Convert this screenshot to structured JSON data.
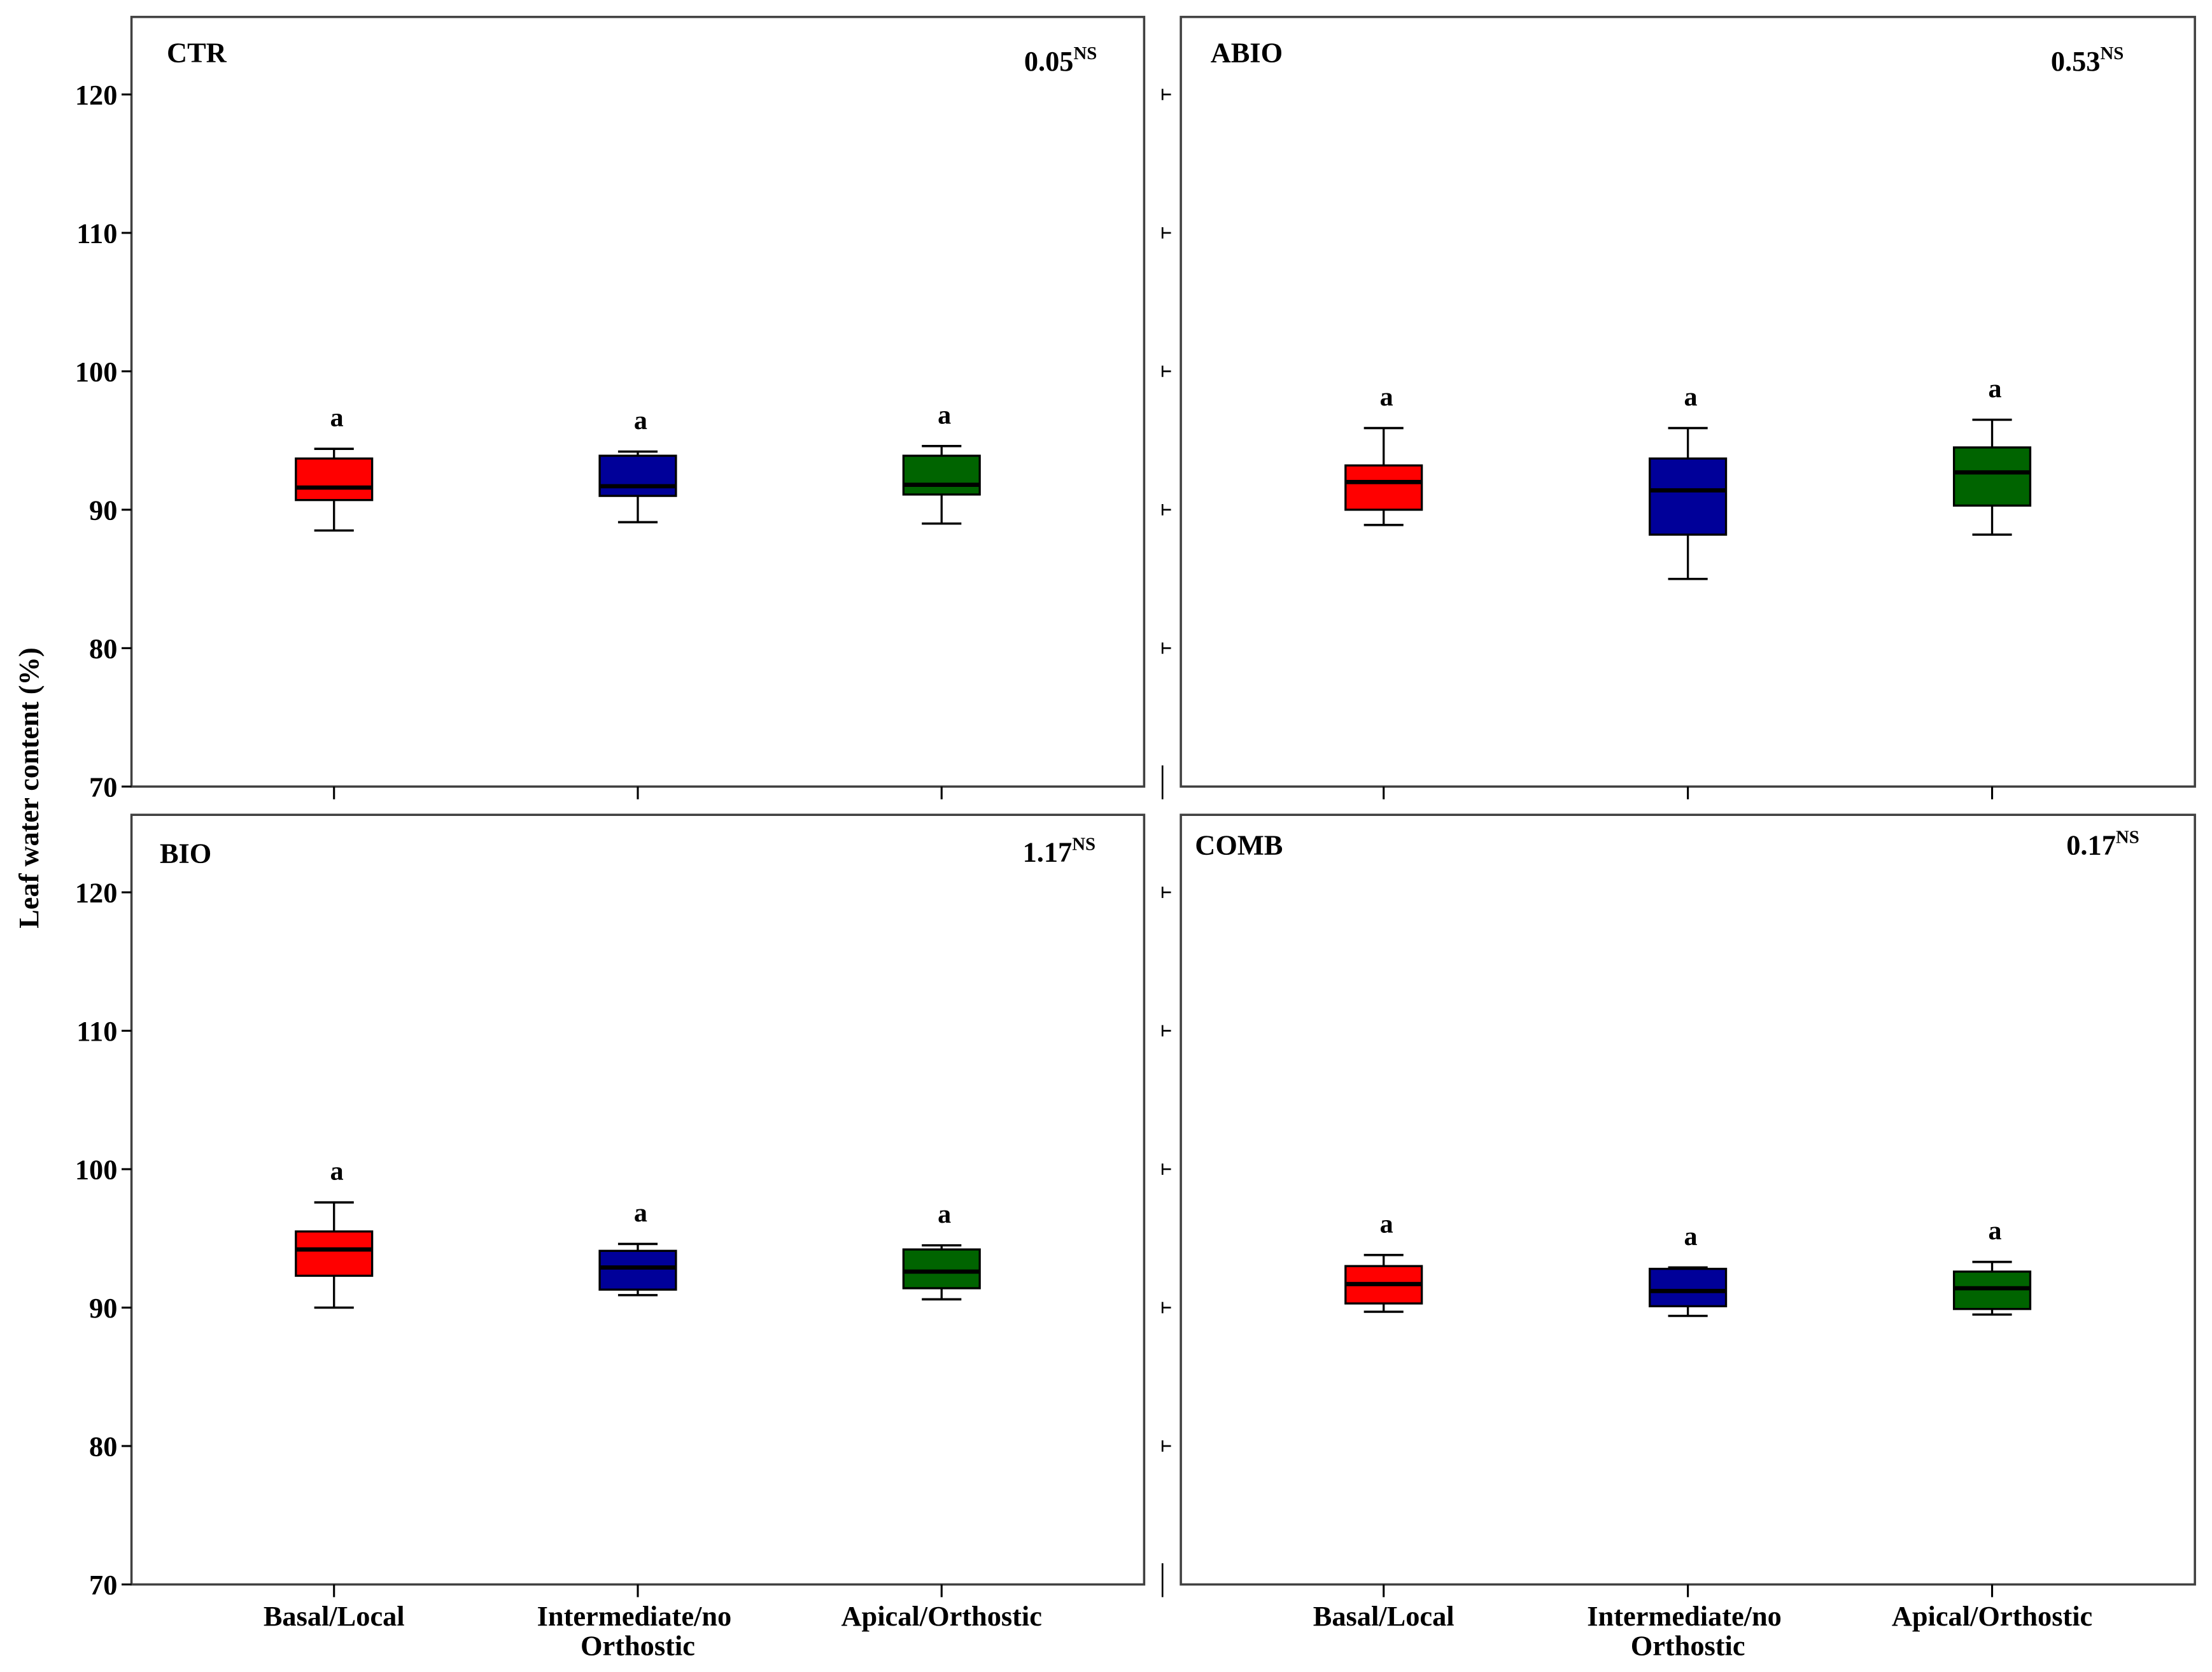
{
  "chart_data": {
    "type": "box",
    "ylabel": "Leaf water content (%)",
    "ylim": [
      70,
      125.6
    ],
    "yticks": [
      70,
      80,
      90,
      100,
      110,
      120
    ],
    "categories": [
      "Basal/Local",
      "Intermediate/no Orthostic",
      "Apical/Orthostic"
    ],
    "colors": [
      "#ff0000",
      "#000099",
      "#006400"
    ],
    "panels": [
      {
        "title": "CTR",
        "stat": "0.05",
        "stat_sup": "NS",
        "boxes": [
          {
            "low": 88.5,
            "q1": 90.7,
            "median": 91.6,
            "q3": 93.7,
            "high": 94.4,
            "letter": "a"
          },
          {
            "low": 89.1,
            "q1": 91.0,
            "median": 91.7,
            "q3": 93.9,
            "high": 94.2,
            "letter": "a"
          },
          {
            "low": 89.0,
            "q1": 91.1,
            "median": 91.8,
            "q3": 93.9,
            "high": 94.6,
            "letter": "a"
          }
        ]
      },
      {
        "title": "ABIO",
        "stat": "0.53",
        "stat_sup": "NS",
        "boxes": [
          {
            "low": 88.9,
            "q1": 90.0,
            "median": 92.0,
            "q3": 93.2,
            "high": 95.9,
            "letter": "a"
          },
          {
            "low": 85.0,
            "q1": 88.2,
            "median": 91.4,
            "q3": 93.7,
            "high": 95.9,
            "letter": "a"
          },
          {
            "low": 88.2,
            "q1": 90.3,
            "median": 92.7,
            "q3": 94.5,
            "high": 96.5,
            "letter": "a"
          }
        ]
      },
      {
        "title": "BIO",
        "stat": "1.17",
        "stat_sup": "NS",
        "boxes": [
          {
            "low": 90.0,
            "q1": 92.3,
            "median": 94.2,
            "q3": 95.5,
            "high": 97.6,
            "letter": "a"
          },
          {
            "low": 90.9,
            "q1": 91.3,
            "median": 92.9,
            "q3": 94.1,
            "high": 94.6,
            "letter": "a"
          },
          {
            "low": 90.6,
            "q1": 91.4,
            "median": 92.6,
            "q3": 94.2,
            "high": 94.5,
            "letter": "a"
          }
        ]
      },
      {
        "title": "COMB",
        "stat": "0.17",
        "stat_sup": "NS",
        "boxes": [
          {
            "low": 89.7,
            "q1": 90.3,
            "median": 91.7,
            "q3": 93.0,
            "high": 93.8,
            "letter": "a"
          },
          {
            "low": 89.4,
            "q1": 90.1,
            "median": 91.2,
            "q3": 92.8,
            "high": 92.9,
            "letter": "a"
          },
          {
            "low": 89.5,
            "q1": 89.9,
            "median": 91.4,
            "q3": 92.6,
            "high": 93.3,
            "letter": "a"
          }
        ]
      }
    ]
  }
}
